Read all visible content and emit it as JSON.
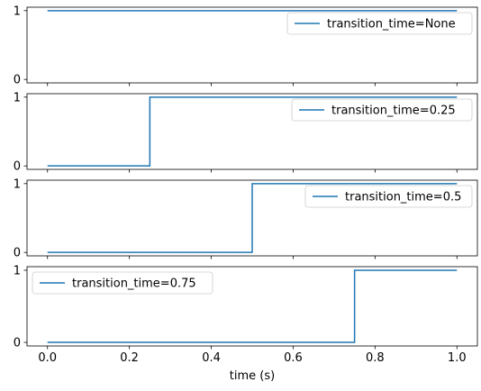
{
  "chart_data": [
    {
      "type": "line",
      "series": [
        {
          "name": "transition_time=None",
          "x": [
            0,
            1
          ],
          "y": [
            1,
            1
          ]
        }
      ],
      "ylim": [
        -0.05,
        1.05
      ],
      "xlim": [
        -0.05,
        1.05
      ],
      "yticks": [
        0,
        1
      ],
      "x_ticklabels_visible": false,
      "legend_position": "top-right",
      "grid": false
    },
    {
      "type": "line",
      "series": [
        {
          "name": "transition_time=0.25",
          "x": [
            0,
            0.25,
            0.25,
            1
          ],
          "y": [
            0,
            0,
            1,
            1
          ]
        }
      ],
      "ylim": [
        -0.05,
        1.05
      ],
      "xlim": [
        -0.05,
        1.05
      ],
      "yticks": [
        0,
        1
      ],
      "x_ticklabels_visible": false,
      "legend_position": "top-right",
      "grid": false
    },
    {
      "type": "line",
      "series": [
        {
          "name": "transition_time=0.5",
          "x": [
            0,
            0.5,
            0.5,
            1
          ],
          "y": [
            0,
            0,
            1,
            1
          ]
        }
      ],
      "ylim": [
        -0.05,
        1.05
      ],
      "xlim": [
        -0.05,
        1.05
      ],
      "yticks": [
        0,
        1
      ],
      "x_ticklabels_visible": false,
      "legend_position": "top-right",
      "grid": false
    },
    {
      "type": "line",
      "series": [
        {
          "name": "transition_time=0.75",
          "x": [
            0,
            0.75,
            0.75,
            1
          ],
          "y": [
            0,
            0,
            1,
            1
          ]
        }
      ],
      "ylim": [
        -0.05,
        1.05
      ],
      "xlim": [
        -0.05,
        1.05
      ],
      "yticks": [
        0,
        1
      ],
      "xticks": [
        0.0,
        0.2,
        0.4,
        0.6,
        0.8,
        1.0
      ],
      "x_ticklabels": [
        "0.0",
        "0.2",
        "0.4",
        "0.6",
        "0.8",
        "1.0"
      ],
      "x_ticklabels_visible": true,
      "xlabel": "time (s)",
      "legend_position": "top-left",
      "grid": false
    }
  ],
  "colors": {
    "series": "#1f77b4",
    "axes": "#000000",
    "legend_border": "#cccccc"
  }
}
